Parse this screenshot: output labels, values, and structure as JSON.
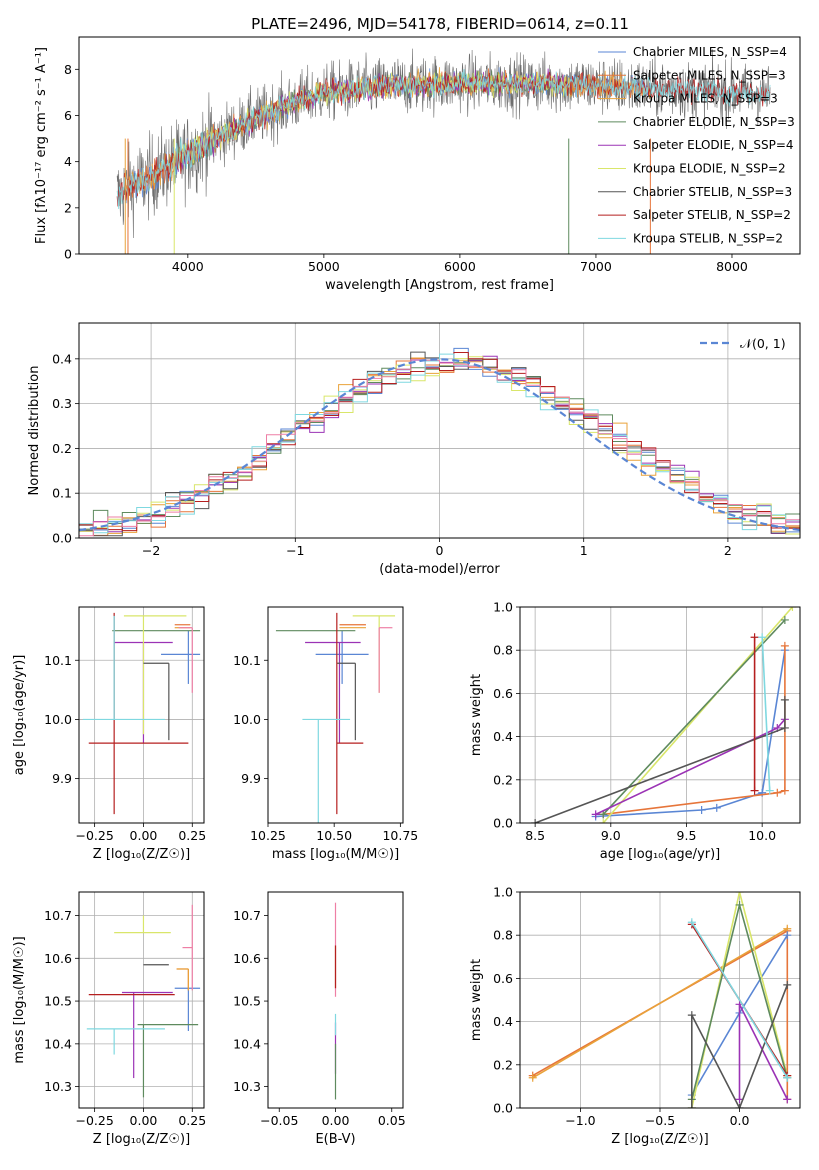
{
  "figure_title": "PLATE=2496, MJD=54178, FIBERID=0614, z=0.11",
  "chart_data": [
    {
      "id": "spectrum",
      "type": "line",
      "xlabel": "wavelength [Angstrom, rest frame]",
      "ylabel": "Flux [fλ10⁻¹⁷ erg cm⁻² s⁻¹ A⁻¹]",
      "xlim": [
        3200,
        8500
      ],
      "ylim": [
        0,
        9.4
      ],
      "xticks": [
        4000,
        5000,
        6000,
        7000,
        8000
      ],
      "xtick_labels": [
        "4000",
        "5000",
        "6000",
        "7000",
        "8000"
      ],
      "yticks": [
        0,
        2,
        4,
        6,
        8
      ],
      "ytick_labels": [
        "0",
        "2",
        "4",
        "6",
        "8"
      ],
      "grid": false,
      "legend_position": "right",
      "data_wavelength_range": [
        3480,
        8280
      ],
      "continuum": {
        "x": [
          3480,
          3600,
          3800,
          4000,
          4200,
          4500,
          4800,
          5000,
          5500,
          6000,
          6500,
          7000,
          7500,
          8000,
          8280
        ],
        "y": [
          2.5,
          3.0,
          3.6,
          4.3,
          5.0,
          5.9,
          6.6,
          7.0,
          7.3,
          7.4,
          7.4,
          7.3,
          7.15,
          7.0,
          6.9
        ]
      },
      "series": [
        {
          "name": "Chabrier MILES, NSSP=4",
          "color": "#5a86d4",
          "x_range": [
            3540,
            7400
          ]
        },
        {
          "name": "Salpeter MILES, NSSP=3",
          "color": "#e6753a",
          "x_range": [
            3540,
            7400
          ]
        },
        {
          "name": "Kroupa MILES, NSSP=3",
          "color": "#e9a23a",
          "x_range": [
            3540,
            7400
          ]
        },
        {
          "name": "Chabrier ELODIE, NSSP=3",
          "color": "#5e8a5e",
          "x_range": [
            3900,
            6800
          ]
        },
        {
          "name": "Salpeter ELODIE, NSSP=4",
          "color": "#9b33b5",
          "x_range": [
            3900,
            6800
          ]
        },
        {
          "name": "Kroupa ELODIE, NSSP=2",
          "color": "#d9e66a",
          "x_range": [
            3900,
            6800
          ]
        },
        {
          "name": "Chabrier STELIB, NSSP=3",
          "color": "#555555",
          "x_range": [
            3480,
            8280
          ]
        },
        {
          "name": "Salpeter STELIB, NSSP=2",
          "color": "#b51f1f",
          "x_range": [
            3480,
            8280
          ]
        },
        {
          "name": "Kroupa STELIB, NSSP=2",
          "color": "#7fd8e0",
          "x_range": [
            3480,
            8280
          ]
        }
      ],
      "legend_labels": [
        "Chabrier MILES, N_SSP=4",
        "Salpeter MILES, N_SSP=3",
        "Kroupa MILES, N_SSP=3",
        "Chabrier ELODIE, N_SSP=3",
        "Salpeter ELODIE, N_SSP=4",
        "Kroupa ELODIE, N_SSP=2",
        "Chabrier STELIB, N_SSP=3",
        "Salpeter STELIB, N_SSP=2",
        "Kroupa STELIB, N_SSP=2"
      ]
    },
    {
      "id": "residuals",
      "type": "histogram",
      "xlabel": "(data-model)/error",
      "ylabel": "Normed distribution",
      "xlim": [
        -2.5,
        2.5
      ],
      "ylim": [
        0,
        0.48
      ],
      "xticks": [
        -2,
        -1,
        0,
        1,
        2
      ],
      "xtick_labels": [
        "−2",
        "−1",
        "0",
        "1",
        "2"
      ],
      "yticks": [
        0,
        0.1,
        0.2,
        0.3,
        0.4
      ],
      "ytick_labels": [
        "0.0",
        "0.1",
        "0.2",
        "0.3",
        "0.4"
      ],
      "grid": true,
      "bin_width": 0.1,
      "bin_start": -2.5,
      "legend_label": "𝒩(0, 1)",
      "legend_position": "top-right",
      "reference_curve": {
        "type": "gaussian",
        "mean": 0,
        "sigma": 1,
        "color": "#5a86d4",
        "style": "dashed"
      },
      "series_colors": [
        "#5a86d4",
        "#e6753a",
        "#e9a23a",
        "#5e8a5e",
        "#9b33b5",
        "#d9e66a",
        "#555555",
        "#b51f1f",
        "#7fd8e0",
        "#ee7fa5"
      ]
    },
    {
      "id": "age_vs_Z",
      "type": "errorbar",
      "xlabel": "Z [log₁₀(Z/Z☉)]",
      "ylabel": "age  [log₁₀(age/yr)]",
      "xlim": [
        -0.33,
        0.31
      ],
      "ylim": [
        9.825,
        10.19
      ],
      "xticks": [
        -0.25,
        0.0,
        0.25
      ],
      "xtick_labels": [
        "−0.25",
        "0.00",
        "0.25"
      ],
      "yticks": [
        9.9,
        10.0,
        10.1
      ],
      "ytick_labels": [
        "9.9",
        "10.0",
        "10.1"
      ],
      "grid": true,
      "points": [
        {
          "x": 0.23,
          "y": 10.11,
          "x_err": [
            0.14,
            0.06
          ],
          "y_err": [
            0.05,
            0.04
          ],
          "color": "#5a86d4"
        },
        {
          "x": 0.24,
          "y": 10.16,
          "x_err": [
            0.08,
            0.0
          ],
          "y_err": [
            0.0,
            0.0
          ],
          "color": "#e6753a"
        },
        {
          "x": 0.24,
          "y": 10.155,
          "x_err": [
            0.08,
            0.0
          ],
          "y_err": [
            0.0,
            0.0
          ],
          "color": "#e9a23a"
        },
        {
          "x": 0.02,
          "y": 10.15,
          "x_err": [
            0.18,
            0.27
          ],
          "y_err": [
            0.0,
            0.0
          ],
          "color": "#5e8a5e"
        },
        {
          "x": 0.0,
          "y": 10.13,
          "x_err": [
            0.15,
            0.15
          ],
          "y_err": [
            0.17,
            0.0
          ],
          "color": "#9b33b5"
        },
        {
          "x": 0.0,
          "y": 10.175,
          "x_err": [
            0.1,
            0.22
          ],
          "y_err": [
            0.2,
            0.0
          ],
          "color": "#d9e66a"
        },
        {
          "x": 0.13,
          "y": 10.095,
          "x_err": [
            0.13,
            0.0
          ],
          "y_err": [
            0.13,
            0.0
          ],
          "color": "#555555"
        },
        {
          "x": -0.15,
          "y": 9.96,
          "x_err": [
            0.13,
            0.38
          ],
          "y_err": [
            0.12,
            0.22
          ],
          "color": "#b51f1f"
        },
        {
          "x": -0.15,
          "y": 10.0,
          "x_err": [
            0.16,
            0.26
          ],
          "y_err": [
            0.0,
            0.175
          ],
          "color": "#7fd8e0"
        },
        {
          "x": 0.25,
          "y": 10.155,
          "x_err": [
            0.07,
            0.0
          ],
          "y_err": [
            0.11,
            0.0
          ],
          "color": "#ee7fa5"
        }
      ]
    },
    {
      "id": "age_vs_mass",
      "type": "errorbar",
      "xlabel": "mass [log₁₀(M/M☉)]",
      "ylabel": "",
      "xlim": [
        10.25,
        10.76
      ],
      "ylim": [
        9.825,
        10.19
      ],
      "xticks": [
        10.25,
        10.5,
        10.75
      ],
      "xtick_labels": [
        "10.25",
        "10.50",
        "10.75"
      ],
      "yticks": [
        9.9,
        10.0,
        10.1
      ],
      "ytick_labels": [
        "9.9",
        "10.0",
        "10.1"
      ],
      "grid": false,
      "points": [
        {
          "x": 10.53,
          "y": 10.11,
          "x_err": [
            0.1,
            0.1
          ],
          "y_err": [
            0.05,
            0.04
          ],
          "color": "#5a86d4"
        },
        {
          "x": 10.57,
          "y": 10.16,
          "x_err": [
            0.05,
            0.05
          ],
          "y_err": [
            0.0,
            0.0
          ],
          "color": "#e6753a"
        },
        {
          "x": 10.57,
          "y": 10.155,
          "x_err": [
            0.05,
            0.05
          ],
          "y_err": [
            0.0,
            0.0
          ],
          "color": "#e9a23a"
        },
        {
          "x": 10.44,
          "y": 10.15,
          "x_err": [
            0.16,
            0.14
          ],
          "y_err": [
            0.0,
            0.0
          ],
          "color": "#5e8a5e"
        },
        {
          "x": 10.52,
          "y": 10.13,
          "x_err": [
            0.13,
            0.08
          ],
          "y_err": [
            0.17,
            0.0
          ],
          "color": "#9b33b5"
        },
        {
          "x": 10.67,
          "y": 10.175,
          "x_err": [
            0.1,
            0.06
          ],
          "y_err": [
            0.13,
            0.0
          ],
          "color": "#d9e66a"
        },
        {
          "x": 10.58,
          "y": 10.095,
          "x_err": [
            0.07,
            0.0
          ],
          "y_err": [
            0.13,
            0.0
          ],
          "color": "#555555"
        },
        {
          "x": 10.51,
          "y": 9.96,
          "x_err": [
            0.0,
            0.1
          ],
          "y_err": [
            0.12,
            0.22
          ],
          "color": "#b51f1f"
        },
        {
          "x": 10.44,
          "y": 10.0,
          "x_err": [
            0.06,
            0.12
          ],
          "y_err": [
            0.175,
            0.0
          ],
          "color": "#7fd8e0"
        },
        {
          "x": 10.67,
          "y": 10.155,
          "x_err": [
            0.0,
            0.05
          ],
          "y_err": [
            0.11,
            0.0
          ],
          "color": "#ee7fa5"
        }
      ]
    },
    {
      "id": "weight_vs_age",
      "type": "line",
      "xlabel": "age  [log₁₀(age/yr)]",
      "ylabel": "mass weight",
      "xlim": [
        8.4,
        10.25
      ],
      "ylim": [
        0,
        1.0
      ],
      "xticks": [
        8.5,
        9.0,
        9.5,
        10.0
      ],
      "xtick_labels": [
        "8.5",
        "9.0",
        "9.5",
        "10.0"
      ],
      "yticks": [
        0.0,
        0.2,
        0.4,
        0.6,
        0.8,
        1.0
      ],
      "ytick_labels": [
        "0.0",
        "0.2",
        "0.4",
        "0.6",
        "0.8",
        "1.0"
      ],
      "grid": true,
      "series": [
        {
          "color": "#5a86d4",
          "x": [
            8.9,
            9.6,
            9.7,
            10.0,
            10.15
          ],
          "y": [
            0.03,
            0.06,
            0.07,
            0.14,
            0.8
          ]
        },
        {
          "color": "#e6753a",
          "x": [
            8.95,
            10.1,
            10.15,
            10.15
          ],
          "y": [
            0.04,
            0.14,
            0.15,
            0.82
          ]
        },
        {
          "color": "#d9e66a",
          "x": [
            8.95,
            10.2
          ],
          "y": [
            0.0,
            1.0
          ]
        },
        {
          "color": "#5e8a5e",
          "x": [
            8.95,
            10.15
          ],
          "y": [
            0.04,
            0.94
          ]
        },
        {
          "color": "#9b33b5",
          "x": [
            8.9,
            10.1,
            10.15
          ],
          "y": [
            0.04,
            0.44,
            0.48
          ]
        },
        {
          "color": "#555555",
          "x": [
            8.5,
            10.15,
            10.15
          ],
          "y": [
            0.0,
            0.44,
            0.57
          ]
        },
        {
          "color": "#b51f1f",
          "x": [
            9.95,
            9.95
          ],
          "y": [
            0.15,
            0.86
          ]
        },
        {
          "color": "#7fd8e0",
          "x": [
            10.0,
            10.05
          ],
          "y": [
            0.86,
            0.15
          ]
        }
      ]
    },
    {
      "id": "mass_vs_Z",
      "type": "errorbar",
      "xlabel": "Z [log₁₀(Z/Z☉)]",
      "ylabel": "mass [log₁₀(M/M☉)]",
      "xlim": [
        -0.33,
        0.31
      ],
      "ylim": [
        10.25,
        10.755
      ],
      "xticks": [
        -0.25,
        0.0,
        0.25
      ],
      "xtick_labels": [
        "−0.25",
        "0.00",
        "0.25"
      ],
      "yticks": [
        10.3,
        10.4,
        10.5,
        10.6,
        10.7
      ],
      "ytick_labels": [
        "10.3",
        "10.4",
        "10.5",
        "10.6",
        "10.7"
      ],
      "grid": true,
      "points": [
        {
          "x": 0.23,
          "y": 10.53,
          "x_err": [
            0.07,
            0.06
          ],
          "y_err": [
            0.1,
            0.0
          ],
          "color": "#5a86d4"
        },
        {
          "x": 0.23,
          "y": 10.575,
          "x_err": [
            0.06,
            0.0
          ],
          "y_err": [
            0.05,
            0.0
          ],
          "color": "#e6753a"
        },
        {
          "x": 0.23,
          "y": 10.575,
          "x_err": [
            0.06,
            0.0
          ],
          "y_err": [
            0.05,
            0.0
          ],
          "color": "#e9a23a"
        },
        {
          "x": 0.0,
          "y": 10.445,
          "x_err": [
            0.03,
            0.28
          ],
          "y_err": [
            0.17,
            0.0
          ],
          "color": "#5e8a5e"
        },
        {
          "x": -0.05,
          "y": 10.52,
          "x_err": [
            0.06,
            0.2
          ],
          "y_err": [
            0.2,
            0.0
          ],
          "color": "#9b33b5"
        },
        {
          "x": 0.0,
          "y": 10.66,
          "x_err": [
            0.15,
            0.14
          ],
          "y_err": [
            0.0,
            0.04
          ],
          "color": "#d9e66a"
        },
        {
          "x": 0.0,
          "y": 10.585,
          "x_err": [
            0.0,
            0.13
          ],
          "y_err": [
            0.0,
            0.0
          ],
          "color": "#555555"
        },
        {
          "x": 0.0,
          "y": 10.515,
          "x_err": [
            0.28,
            0.16
          ],
          "y_err": [
            0.0,
            0.0
          ],
          "color": "#b51f1f"
        },
        {
          "x": -0.15,
          "y": 10.435,
          "x_err": [
            0.14,
            0.26
          ],
          "y_err": [
            0.06,
            0.0
          ],
          "color": "#7fd8e0"
        },
        {
          "x": 0.25,
          "y": 10.625,
          "x_err": [
            0.05,
            0.0
          ],
          "y_err": [
            0.1,
            0.1
          ],
          "color": "#ee7fa5"
        }
      ]
    },
    {
      "id": "mass_vs_EBV",
      "type": "errorbar",
      "xlabel": "E(B-V)",
      "ylabel": "",
      "xlim": [
        -0.06,
        0.06
      ],
      "ylim": [
        10.25,
        10.755
      ],
      "xticks": [
        -0.05,
        0.0,
        0.05
      ],
      "xtick_labels": [
        "−0.05",
        "0.00",
        "0.05"
      ],
      "yticks": [
        10.3,
        10.4,
        10.5,
        10.6,
        10.7
      ],
      "ytick_labels": [
        "10.3",
        "10.4",
        "10.5",
        "10.6",
        "10.7"
      ],
      "grid": false,
      "points": [
        {
          "x": 0.0,
          "y": 10.58,
          "x_err": [
            0,
            0
          ],
          "y_err": [
            0.05,
            0.05
          ],
          "color": "#d9e66a"
        },
        {
          "x": 0.0,
          "y": 10.57,
          "x_err": [
            0,
            0
          ],
          "y_err": [
            0.06,
            0.16
          ],
          "color": "#ee7fa5"
        },
        {
          "x": 0.0,
          "y": 10.58,
          "x_err": [
            0,
            0
          ],
          "y_err": [
            0.05,
            0.05
          ],
          "color": "#b51f1f"
        },
        {
          "x": 0.0,
          "y": 10.45,
          "x_err": [
            0,
            0
          ],
          "y_err": [
            0.12,
            0.0
          ],
          "color": "#9b33b5"
        },
        {
          "x": 0.0,
          "y": 10.4,
          "x_err": [
            0,
            0
          ],
          "y_err": [
            0.13,
            0.0
          ],
          "color": "#5e8a5e"
        },
        {
          "x": 0.0,
          "y": 10.42,
          "x_err": [
            0,
            0
          ],
          "y_err": [
            0.0,
            0.05
          ],
          "color": "#7fd8e0"
        }
      ]
    },
    {
      "id": "weight_vs_Z",
      "type": "line",
      "xlabel": "Z [log₁₀(Z/Z☉)]",
      "ylabel": "mass weight",
      "xlim": [
        -1.38,
        0.38
      ],
      "ylim": [
        0,
        1.0
      ],
      "xticks": [
        -1.0,
        -0.5,
        0.0
      ],
      "xtick_labels": [
        "−1.0",
        "−0.5",
        "0.0"
      ],
      "yticks": [
        0.0,
        0.2,
        0.4,
        0.6,
        0.8,
        1.0
      ],
      "ytick_labels": [
        "0.0",
        "0.2",
        "0.4",
        "0.6",
        "0.8",
        "1.0"
      ],
      "grid": true,
      "series": [
        {
          "color": "#e6753a",
          "x": [
            -1.3,
            0.3,
            0.3
          ],
          "y": [
            0.15,
            0.82,
            0.04
          ]
        },
        {
          "color": "#e9a23a",
          "x": [
            -1.3,
            0.3
          ],
          "y": [
            0.14,
            0.83
          ]
        },
        {
          "color": "#5a86d4",
          "x": [
            -0.3,
            0.0,
            0.3
          ],
          "y": [
            0.06,
            0.44,
            0.8
          ]
        },
        {
          "color": "#d9e66a",
          "x": [
            -0.3,
            0.0,
            0.3
          ],
          "y": [
            0.0,
            1.0,
            0.15
          ]
        },
        {
          "color": "#5e8a5e",
          "x": [
            -0.3,
            0.0,
            0.3
          ],
          "y": [
            0.04,
            0.94,
            0.14
          ]
        },
        {
          "color": "#9b33b5",
          "x": [
            0.0,
            0.0,
            0.3
          ],
          "y": [
            0.04,
            0.48,
            0.04
          ]
        },
        {
          "color": "#555555",
          "x": [
            -0.3,
            -0.3,
            0.0,
            0.3
          ],
          "y": [
            0.0,
            0.43,
            0.0,
            0.57
          ]
        },
        {
          "color": "#b51f1f",
          "x": [
            -0.3,
            0.3
          ],
          "y": [
            0.85,
            0.15
          ]
        },
        {
          "color": "#7fd8e0",
          "x": [
            -0.3,
            0.3
          ],
          "y": [
            0.86,
            0.14
          ]
        }
      ]
    }
  ]
}
